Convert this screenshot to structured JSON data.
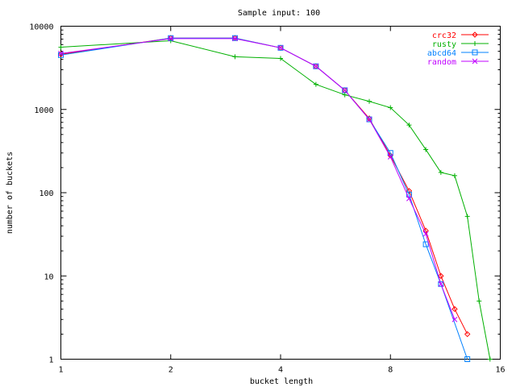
{
  "chart_data": {
    "type": "line",
    "title": "Sample input: 100",
    "xlabel": "bucket length",
    "ylabel": "number of buckets",
    "x_scale": "log2",
    "y_scale": "log10",
    "xlim": [
      1,
      16
    ],
    "ylim": [
      1,
      10000
    ],
    "x_ticks": [
      1,
      2,
      4,
      8,
      16
    ],
    "y_ticks": [
      1,
      10,
      100,
      1000,
      10000
    ],
    "x_tick_labels": [
      "1",
      "2",
      "4",
      "8",
      "16"
    ],
    "y_tick_labels": [
      "1",
      "10",
      "100",
      "1000",
      "10000"
    ],
    "grid": false,
    "legend_position": "top-right",
    "series": [
      {
        "name": "crc32",
        "color": "#ff0000",
        "marker": "diamond",
        "points": [
          [
            1,
            4600
          ],
          [
            2,
            7200
          ],
          [
            3,
            7200
          ],
          [
            4,
            5500
          ],
          [
            5,
            3300
          ],
          [
            6,
            1700
          ],
          [
            7,
            780
          ],
          [
            8,
            280
          ],
          [
            9,
            105
          ],
          [
            10,
            35
          ],
          [
            11,
            10
          ],
          [
            12,
            4
          ],
          [
            13,
            2
          ]
        ]
      },
      {
        "name": "rusty",
        "color": "#00b000",
        "marker": "plus",
        "points": [
          [
            1,
            5600
          ],
          [
            2,
            6700
          ],
          [
            3,
            4300
          ],
          [
            4,
            4100
          ],
          [
            5,
            2000
          ],
          [
            6,
            1500
          ],
          [
            7,
            1250
          ],
          [
            8,
            1050
          ],
          [
            9,
            650
          ],
          [
            10,
            330
          ],
          [
            11,
            175
          ],
          [
            12,
            160
          ],
          [
            13,
            52
          ],
          [
            14,
            5
          ],
          [
            15,
            1
          ]
        ]
      },
      {
        "name": "abcd64",
        "color": "#0080ff",
        "marker": "square",
        "points": [
          [
            1,
            4500
          ],
          [
            2,
            7200
          ],
          [
            3,
            7200
          ],
          [
            4,
            5500
          ],
          [
            5,
            3300
          ],
          [
            6,
            1700
          ],
          [
            7,
            760
          ],
          [
            8,
            300
          ],
          [
            9,
            95
          ],
          [
            10,
            24
          ],
          [
            11,
            8
          ],
          [
            13,
            1
          ]
        ]
      },
      {
        "name": "random",
        "color": "#c000ff",
        "marker": "x",
        "points": [
          [
            1,
            4700
          ],
          [
            2,
            7100
          ],
          [
            3,
            7100
          ],
          [
            4,
            5500
          ],
          [
            5,
            3300
          ],
          [
            6,
            1700
          ],
          [
            7,
            760
          ],
          [
            8,
            270
          ],
          [
            9,
            85
          ],
          [
            10,
            32
          ],
          [
            11,
            8
          ],
          [
            12,
            3
          ]
        ]
      }
    ]
  }
}
